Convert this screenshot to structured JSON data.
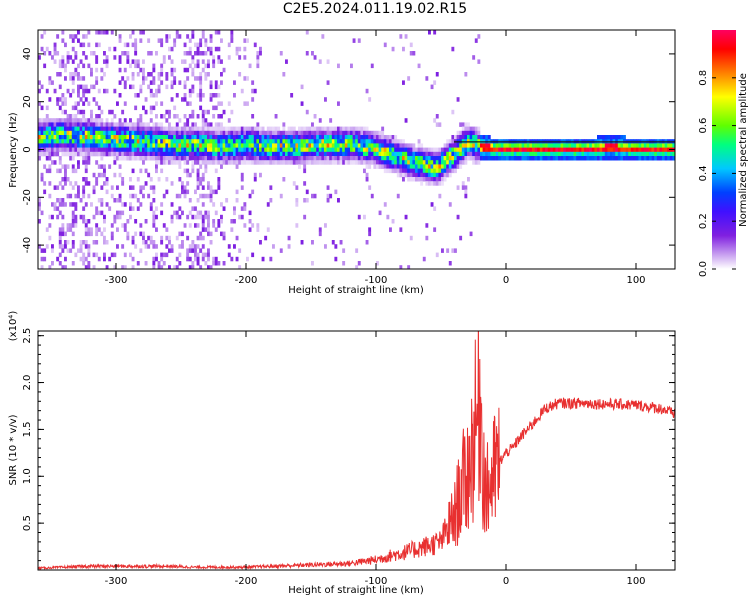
{
  "title": "C2E5.2024.011.19.02.R15",
  "colors": {
    "snr_line": "#e83030",
    "frame": "#000000",
    "carrier": "#1a1a1a"
  },
  "chart_data": [
    {
      "type": "heatmap",
      "title": "C2E5.2024.011.19.02.R15",
      "xlabel": "Height of straight line (km)",
      "ylabel": "Frequency (Hz)",
      "xlim": [
        -360,
        130
      ],
      "ylim": [
        -50,
        50
      ],
      "xticks": [
        -300,
        -200,
        -100,
        0,
        100
      ],
      "yticks": [
        -40,
        -20,
        0,
        20,
        40
      ],
      "colorbar": {
        "label": "Normalized spectral amplitude",
        "range": [
          0.0,
          1.0
        ],
        "ticks": [
          "0.0",
          "0.2",
          "0.4",
          "0.6",
          "0.8"
        ],
        "colormap": [
          "#ffffff",
          "#c8a0f0",
          "#8020e0",
          "#4010ff",
          "#0040ff",
          "#00c8ff",
          "#00ff80",
          "#60ff00",
          "#ffff00",
          "#ff8000",
          "#ff0000",
          "#ff0060"
        ]
      },
      "ridge": {
        "x": [
          -360,
          -340,
          -320,
          -300,
          -280,
          -260,
          -240,
          -220,
          -200,
          -180,
          -160,
          -140,
          -120,
          -100,
          -90,
          -80,
          -70,
          -60,
          -55,
          -50,
          -45,
          -40,
          -35,
          -30,
          -25,
          -20,
          -10,
          0,
          20,
          40,
          60,
          80,
          100,
          120,
          130
        ],
        "y": [
          6,
          7,
          6,
          5,
          4,
          3,
          3,
          2,
          3,
          2,
          2,
          3,
          3,
          1,
          -1,
          -3,
          -5,
          -6,
          -7,
          -5,
          -3,
          -1,
          2,
          4,
          3,
          2,
          1,
          1,
          1,
          1,
          1,
          1.5,
          1,
          1,
          1
        ]
      },
      "grid": false,
      "legend": "colorbar-right"
    },
    {
      "type": "line",
      "xlabel": "Height of straight line (km)",
      "ylabel": "SNR (10 * v/v)",
      "yscale_label": "(x10⁴)",
      "xlim": [
        -360,
        130
      ],
      "ylim": [
        0,
        2.55
      ],
      "xticks": [
        -300,
        -200,
        -100,
        0,
        100
      ],
      "yticks": [
        0.5,
        1.0,
        1.5,
        2.0,
        2.5
      ],
      "yticklabels": [
        "0.5",
        "1.0",
        "1.5",
        "2.0",
        "2.5"
      ],
      "x": [
        -360,
        -340,
        -320,
        -300,
        -280,
        -260,
        -240,
        -220,
        -200,
        -180,
        -160,
        -140,
        -120,
        -110,
        -100,
        -90,
        -80,
        -70,
        -60,
        -50,
        -45,
        -40,
        -35,
        -30,
        -27,
        -25,
        -22,
        -20,
        -18,
        -15,
        -10,
        -5,
        0,
        5,
        10,
        20,
        30,
        40,
        60,
        80,
        100,
        110,
        120,
        130
      ],
      "y": [
        0.02,
        0.03,
        0.04,
        0.04,
        0.04,
        0.04,
        0.03,
        0.03,
        0.03,
        0.04,
        0.05,
        0.06,
        0.07,
        0.09,
        0.11,
        0.15,
        0.18,
        0.22,
        0.26,
        0.3,
        0.45,
        0.55,
        0.85,
        1.0,
        1.2,
        1.4,
        1.6,
        2.0,
        1.2,
        0.8,
        1.0,
        1.15,
        1.25,
        1.3,
        1.4,
        1.55,
        1.72,
        1.78,
        1.78,
        1.77,
        1.76,
        1.74,
        1.72,
        1.66
      ],
      "grid": false
    }
  ]
}
